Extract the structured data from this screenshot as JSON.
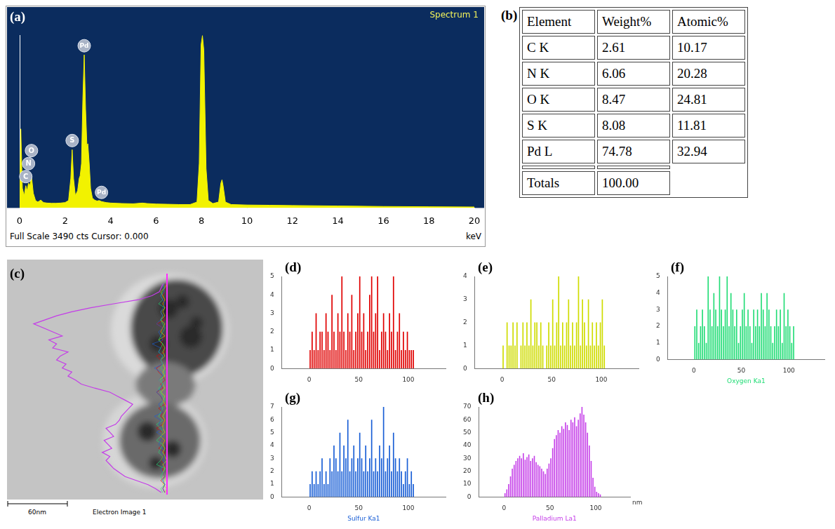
{
  "chart_data": [
    {
      "panel": "(a)",
      "type": "line",
      "title": "Spectrum 1",
      "footer": "Full Scale 3490 cts Cursor: 0.000",
      "x_label": "keV",
      "x": [
        0,
        0.05,
        0.12,
        0.2,
        0.27,
        0.33,
        0.39,
        0.45,
        0.52,
        0.6,
        0.7,
        0.8,
        0.93,
        1.05,
        1.2,
        1.4,
        1.6,
        1.8,
        2,
        2.15,
        2.25,
        2.31,
        2.37,
        2.45,
        2.55,
        2.62,
        2.66,
        2.72,
        2.78,
        2.84,
        2.9,
        2.96,
        3,
        3.06,
        3.12,
        3.2,
        3.3,
        3.4,
        3.5,
        3.6,
        3.8,
        4,
        4.5,
        5,
        5.4,
        5.6,
        6,
        6.5,
        7,
        7.5,
        7.8,
        7.9,
        7.98,
        8.04,
        8.1,
        8.2,
        8.3,
        8.5,
        8.75,
        8.85,
        8.9,
        8.95,
        9.05,
        9.3,
        10,
        11,
        12,
        14,
        16,
        18,
        20
      ],
      "values": [
        0,
        1600,
        400,
        250,
        450,
        350,
        500,
        450,
        650,
        300,
        150,
        120,
        160,
        110,
        100,
        95,
        95,
        100,
        110,
        150,
        600,
        1180,
        600,
        250,
        350,
        600,
        650,
        900,
        2200,
        3100,
        2000,
        1250,
        1300,
        900,
        400,
        200,
        160,
        140,
        150,
        130,
        110,
        100,
        90,
        85,
        100,
        90,
        80,
        75,
        70,
        70,
        120,
        900,
        3300,
        3490,
        3200,
        800,
        150,
        90,
        120,
        500,
        570,
        450,
        120,
        70,
        60,
        55,
        50,
        40,
        30,
        25,
        20
      ],
      "color": "#f2f200",
      "xlim": [
        0,
        20
      ],
      "xticks": [
        0,
        2,
        4,
        6,
        8,
        10,
        12,
        14,
        16,
        18,
        20
      ],
      "ylim": [
        0,
        3500
      ],
      "tick_labels": "x",
      "grid": false,
      "annotations": [
        {
          "text": "C",
          "x": 0.27
        },
        {
          "text": "N",
          "x": 0.39
        },
        {
          "text": "O",
          "x": 0.52
        },
        {
          "text": "S",
          "x": 2.31
        },
        {
          "text": "Pd",
          "x": 2.84
        },
        {
          "text": "Pd",
          "x": 3.6
        }
      ]
    },
    {
      "panel": "(d)",
      "type": "bar",
      "x": [
        1,
        3,
        5,
        7,
        9,
        11,
        13,
        15,
        17,
        19,
        21,
        23,
        25,
        27,
        29,
        31,
        33,
        35,
        37,
        39,
        41,
        43,
        45,
        47,
        49,
        51,
        53,
        55,
        57,
        59,
        61,
        63,
        65,
        67,
        69,
        71,
        73,
        75,
        77,
        79,
        81,
        83,
        85,
        87,
        89,
        91,
        93,
        95,
        97,
        99,
        101,
        103,
        105
      ],
      "values": [
        1,
        2,
        1,
        3,
        1,
        2,
        2,
        1,
        3,
        2,
        1,
        4,
        2,
        1,
        3,
        2,
        5,
        2,
        1,
        3,
        2,
        4,
        1,
        2,
        3,
        5,
        2,
        3,
        1,
        2,
        4,
        5,
        2,
        3,
        5,
        1,
        2,
        3,
        2,
        1,
        3,
        2,
        5,
        1,
        2,
        3,
        1,
        2,
        1,
        2,
        1,
        1,
        1
      ],
      "color": "#e00000",
      "xlim": [
        0,
        110
      ],
      "xticks": [
        0,
        50,
        100
      ],
      "ylim": [
        0,
        5
      ],
      "yticks": [
        0,
        1,
        2,
        3,
        4,
        5
      ],
      "grid": false
    },
    {
      "panel": "(e)",
      "type": "bar",
      "x": [
        1,
        3,
        5,
        7,
        9,
        11,
        13,
        15,
        17,
        19,
        21,
        23,
        25,
        27,
        29,
        31,
        33,
        35,
        37,
        39,
        41,
        43,
        45,
        47,
        49,
        51,
        53,
        55,
        57,
        59,
        61,
        63,
        65,
        67,
        69,
        71,
        73,
        75,
        77,
        79,
        81,
        83,
        85,
        87,
        89,
        91,
        93,
        95,
        97,
        99,
        101,
        103,
        105
      ],
      "values": [
        1,
        0,
        2,
        1,
        1,
        2,
        1,
        2,
        0,
        1,
        2,
        1,
        2,
        1,
        3,
        1,
        2,
        2,
        1,
        2,
        1,
        0,
        1,
        2,
        1,
        3,
        1,
        2,
        4,
        1,
        2,
        1,
        2,
        3,
        1,
        2,
        1,
        2,
        4,
        1,
        3,
        2,
        1,
        3,
        1,
        2,
        1,
        2,
        1,
        2,
        3,
        1,
        0
      ],
      "color": "#cfdc00",
      "xlim": [
        0,
        110
      ],
      "xticks": [
        0,
        50,
        100
      ],
      "ylim": [
        0,
        4
      ],
      "yticks": [
        0,
        1,
        2,
        3,
        4
      ],
      "grid": false
    },
    {
      "panel": "(f)",
      "type": "bar",
      "x_label": "Oxygen Ka1",
      "x": [
        1,
        3,
        5,
        7,
        9,
        11,
        13,
        15,
        17,
        19,
        21,
        23,
        25,
        27,
        29,
        31,
        33,
        35,
        37,
        39,
        41,
        43,
        45,
        47,
        49,
        51,
        53,
        55,
        57,
        59,
        61,
        63,
        65,
        67,
        69,
        71,
        73,
        75,
        77,
        79,
        81,
        83,
        85,
        87,
        89,
        91,
        93,
        95,
        97,
        99,
        101,
        103,
        105
      ],
      "values": [
        2,
        3,
        1,
        2,
        3,
        2,
        1,
        5,
        3,
        2,
        4,
        3,
        2,
        5,
        3,
        2,
        3,
        5,
        2,
        4,
        3,
        2,
        3,
        1,
        2,
        3,
        4,
        2,
        3,
        2,
        1,
        3,
        2,
        3,
        2,
        4,
        3,
        2,
        4,
        3,
        2,
        1,
        2,
        3,
        2,
        3,
        1,
        4,
        2,
        3,
        2,
        1,
        2
      ],
      "color": "#1fdc74",
      "xlim": [
        0,
        110
      ],
      "xticks": [
        0,
        50,
        100
      ],
      "ylim": [
        0,
        5
      ],
      "yticks": [
        0,
        1,
        2,
        3,
        4,
        5
      ],
      "grid": false
    },
    {
      "panel": "(g)",
      "type": "bar",
      "x_label": "Sulfur Ka1",
      "x": [
        1,
        3,
        5,
        7,
        9,
        11,
        13,
        15,
        17,
        19,
        21,
        23,
        25,
        27,
        29,
        31,
        33,
        35,
        37,
        39,
        41,
        43,
        45,
        47,
        49,
        51,
        53,
        55,
        57,
        59,
        61,
        63,
        65,
        67,
        69,
        71,
        73,
        75,
        77,
        79,
        81,
        83,
        85,
        87,
        89,
        91,
        93,
        95,
        97,
        99,
        101,
        103,
        105
      ],
      "values": [
        1,
        2,
        1,
        2,
        1,
        2,
        3,
        1,
        2,
        1,
        3,
        2,
        4,
        3,
        2,
        5,
        2,
        4,
        3,
        6,
        2,
        3,
        4,
        2,
        3,
        5,
        3,
        2,
        4,
        2,
        3,
        6,
        2,
        3,
        2,
        4,
        3,
        7,
        2,
        3,
        4,
        2,
        5,
        3,
        2,
        3,
        2,
        1,
        2,
        3,
        1,
        2,
        1
      ],
      "color": "#1a5fd6",
      "xlim": [
        0,
        110
      ],
      "xticks": [
        0,
        50,
        100
      ],
      "ylim": [
        0,
        7
      ],
      "yticks": [
        0,
        1,
        2,
        3,
        4,
        5,
        6,
        7
      ],
      "grid": false
    },
    {
      "panel": "(h)",
      "type": "bar",
      "x_label": "Palladium La1",
      "x_unit": "nm",
      "x": [
        1,
        3,
        5,
        7,
        9,
        11,
        13,
        15,
        17,
        19,
        21,
        23,
        25,
        27,
        29,
        31,
        33,
        35,
        37,
        39,
        41,
        43,
        45,
        47,
        49,
        51,
        53,
        55,
        57,
        59,
        61,
        63,
        65,
        67,
        69,
        71,
        73,
        75,
        77,
        79,
        81,
        83,
        85,
        87,
        89,
        91,
        93,
        95,
        97,
        99,
        101,
        103,
        105
      ],
      "values": [
        3,
        6,
        10,
        16,
        22,
        25,
        28,
        30,
        32,
        30,
        34,
        29,
        31,
        33,
        28,
        30,
        32,
        27,
        25,
        24,
        22,
        20,
        18,
        22,
        26,
        30,
        38,
        45,
        48,
        52,
        50,
        55,
        53,
        58,
        56,
        52,
        60,
        58,
        62,
        55,
        60,
        65,
        70,
        64,
        58,
        50,
        40,
        28,
        15,
        8,
        4,
        3,
        2
      ],
      "color": "#c43ce8",
      "xlim": [
        0,
        110
      ],
      "xticks": [
        0,
        50,
        100
      ],
      "ylim": [
        0,
        70
      ],
      "yticks": [
        0,
        10,
        20,
        30,
        40,
        50,
        60,
        70
      ],
      "grid": false
    }
  ],
  "table": {
    "panel": "(b)",
    "header": [
      "Element",
      "Weight%",
      "Atomic%"
    ],
    "rows": [
      [
        "C K",
        "2.61",
        "10.17"
      ],
      [
        "N K",
        "6.06",
        "20.28"
      ],
      [
        "O K",
        "8.47",
        "24.81"
      ],
      [
        "S K",
        "8.08",
        "11.81"
      ],
      [
        "Pd L",
        "74.78",
        "32.94"
      ]
    ],
    "totals": [
      "Totals",
      "100.00"
    ]
  },
  "image": {
    "panel": "(c)",
    "scale_bar": "60nm",
    "caption": "Electron Image 1"
  }
}
